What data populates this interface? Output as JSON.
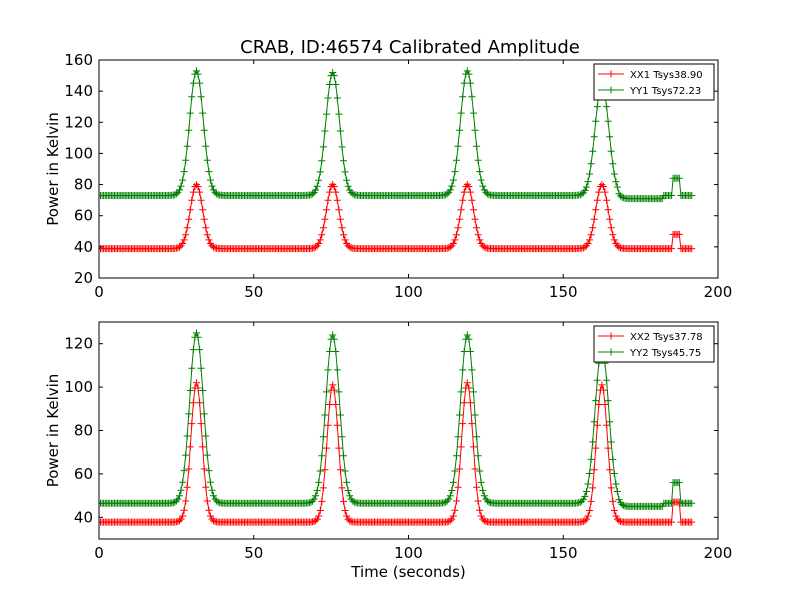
{
  "title": "CRAB, ID:46574 Calibrated Amplitude",
  "colors": {
    "xx": "#ff0000",
    "yy": "#008000",
    "axis": "#000000",
    "background": "#ffffff"
  },
  "chart_data": [
    {
      "type": "line",
      "title": "CRAB, ID:46574 Calibrated Amplitude",
      "xlabel": "",
      "ylabel": "Power in Kelvin",
      "xlim": [
        0,
        200
      ],
      "ylim": [
        20,
        160
      ],
      "xticks": [
        0,
        50,
        100,
        150,
        200
      ],
      "yticks": [
        20,
        40,
        60,
        80,
        100,
        120,
        140,
        160
      ],
      "xtick_labels": [
        "0",
        "50",
        "100",
        "150",
        "200"
      ],
      "ytick_labels": [
        "20",
        "40",
        "60",
        "80",
        "100",
        "120",
        "140",
        "160"
      ],
      "grid": false,
      "legend_position": "top-right",
      "marker": "plus",
      "sample_step": 0.5,
      "x_range": [
        0,
        191.5
      ],
      "series": [
        {
          "name": "XX1 Tsys38.90",
          "color": "#ff0000",
          "baseline": 38.9,
          "peaks": [
            {
              "x": 31.5,
              "height": 80
            },
            {
              "x": 75.5,
              "height": 80
            },
            {
              "x": 119,
              "height": 80
            },
            {
              "x": 162.5,
              "height": 80
            }
          ],
          "peak_width": 2.0,
          "tail_step": {
            "x_start": 185.5,
            "x_end": 187.5,
            "value": 48
          }
        },
        {
          "name": "YY1 Tsys72.23",
          "color": "#008000",
          "baseline": 73,
          "peaks": [
            {
              "x": 31.5,
              "height": 153
            },
            {
              "x": 75.5,
              "height": 152
            },
            {
              "x": 119,
              "height": 153
            },
            {
              "x": 162.5,
              "height": 145
            }
          ],
          "peak_width": 2.2,
          "tail_dip": {
            "x_start": 168,
            "x_end": 182,
            "value": 71
          },
          "tail_step": {
            "x_start": 185.5,
            "x_end": 187.5,
            "value": 84
          }
        }
      ]
    },
    {
      "type": "line",
      "title": "",
      "xlabel": "Time (seconds)",
      "ylabel": "Power in Kelvin",
      "xlim": [
        0,
        200
      ],
      "ylim": [
        30,
        130
      ],
      "xticks": [
        0,
        50,
        100,
        150,
        200
      ],
      "yticks": [
        40,
        60,
        80,
        100,
        120
      ],
      "xtick_labels": [
        "0",
        "50",
        "100",
        "150",
        "200"
      ],
      "ytick_labels": [
        "40",
        "60",
        "80",
        "100",
        "120"
      ],
      "grid": false,
      "legend_position": "top-right",
      "marker": "plus",
      "sample_step": 0.5,
      "x_range": [
        0,
        191.5
      ],
      "series": [
        {
          "name": "XX2 Tsys37.78",
          "color": "#ff0000",
          "baseline": 37.8,
          "peaks": [
            {
              "x": 31.5,
              "height": 102
            },
            {
              "x": 75.5,
              "height": 101
            },
            {
              "x": 119,
              "height": 102
            },
            {
              "x": 162.5,
              "height": 101
            }
          ],
          "peak_width": 1.8,
          "tail_step": {
            "x_start": 185.5,
            "x_end": 187.5,
            "value": 47
          }
        },
        {
          "name": "YY2 Tsys45.75",
          "color": "#008000",
          "baseline": 46.5,
          "peaks": [
            {
              "x": 31.5,
              "height": 125
            },
            {
              "x": 75.5,
              "height": 124
            },
            {
              "x": 119,
              "height": 124
            },
            {
              "x": 162.5,
              "height": 118
            }
          ],
          "peak_width": 2.2,
          "tail_dip": {
            "x_start": 168,
            "x_end": 182,
            "value": 45
          },
          "tail_step": {
            "x_start": 185.5,
            "x_end": 187.5,
            "value": 56
          }
        }
      ]
    }
  ]
}
